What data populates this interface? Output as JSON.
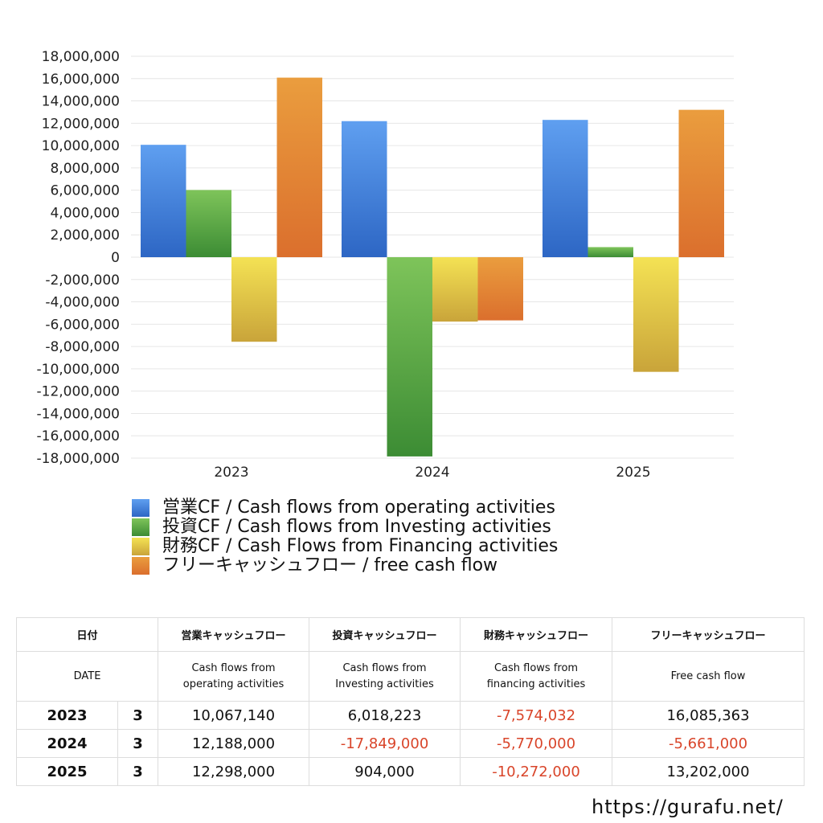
{
  "chart_data": {
    "type": "bar",
    "categories": [
      "2023",
      "2024",
      "2025"
    ],
    "series": [
      {
        "name": "営業CF / Cash flows from operating activities",
        "values": [
          10067140,
          12188000,
          12298000
        ],
        "colors": [
          "#5f9ff0",
          "#2d66c4"
        ]
      },
      {
        "name": "投資CF / Cash flows from Investing activities",
        "values": [
          6018223,
          -17849000,
          904000
        ],
        "colors": [
          "#7ec45a",
          "#3c8c34"
        ]
      },
      {
        "name": "財務CF / Cash Flows from Financing activities",
        "values": [
          -7574032,
          -5770000,
          -10272000
        ],
        "colors": [
          "#f4e254",
          "#c9a43a"
        ]
      },
      {
        "name": "フリーキャッシュフロー / free cash flow",
        "values": [
          16085363,
          -5661000,
          13202000
        ],
        "colors": [
          "#ea9d3e",
          "#db6f2d"
        ]
      }
    ],
    "ylim": [
      -18000000,
      18000000
    ],
    "yticks": [
      "18,000,000",
      "16,000,000",
      "14,000,000",
      "12,000,000",
      "10,000,000",
      "8,000,000",
      "6,000,000",
      "4,000,000",
      "2,000,000",
      "0",
      "-2,000,000",
      "-4,000,000",
      "-6,000,000",
      "-8,000,000",
      "-10,000,000",
      "-12,000,000",
      "-14,000,000",
      "-16,000,000",
      "-18,000,000"
    ],
    "grid": true,
    "legend": "bottom"
  },
  "table": {
    "headers_jp": [
      "日付",
      "営業キャッシュフロー",
      "投資キャッシュフロー",
      "財務キャッシュフロー",
      "フリーキャッシュフロー"
    ],
    "headers_en": [
      "DATE",
      "Cash flows from operating activities",
      "Cash flows from Investing activities",
      "Cash flows from financing activities",
      "Free cash flow"
    ],
    "headers_en_lines": [
      [
        "DATE"
      ],
      [
        "Cash flows from",
        "operating activities"
      ],
      [
        "Cash flows from",
        "Investing activities"
      ],
      [
        "Cash flows from",
        "financing activities"
      ],
      [
        "Free cash flow"
      ]
    ],
    "rows": [
      {
        "year": "2023",
        "month": "3",
        "op": "10,067,140",
        "inv": "6,018,223",
        "fin": "-7,574,032",
        "free": "16,085,363"
      },
      {
        "year": "2024",
        "month": "3",
        "op": "12,188,000",
        "inv": "-17,849,000",
        "fin": "-5,770,000",
        "free": "-5,661,000"
      },
      {
        "year": "2025",
        "month": "3",
        "op": "12,298,000",
        "inv": "904,000",
        "fin": "-10,272,000",
        "free": "13,202,000"
      }
    ],
    "negative_color": "#d9452a"
  },
  "site_url": "https://gurafu.net/"
}
